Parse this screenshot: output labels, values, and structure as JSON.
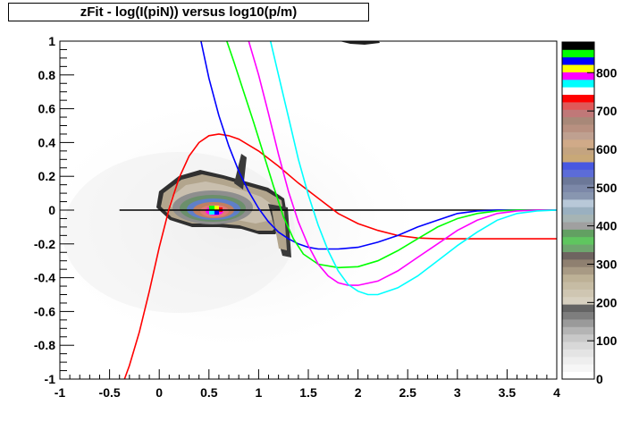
{
  "chart_data": {
    "type": "line",
    "title": "zFit - log(I(piN)) versus log10(p/m)",
    "xlabel": "",
    "ylabel": "",
    "xlim": [
      -1,
      4
    ],
    "ylim": [
      -1,
      1
    ],
    "x_ticks": [
      "-1",
      "-0.5",
      "0",
      "0.5",
      "1",
      "1.5",
      "2",
      "2.5",
      "3",
      "3.5",
      "4"
    ],
    "y_ticks": [
      "-1",
      "-0.8",
      "-0.6",
      "-0.4",
      "-0.2",
      "0",
      "0.2",
      "0.4",
      "0.6",
      "0.8",
      "1"
    ],
    "colorbar_ticks": [
      "0",
      "100",
      "200",
      "300",
      "400",
      "500",
      "600",
      "700",
      "800"
    ],
    "grid": false,
    "legend": "none",
    "background": "2D histogram (density map) centred near x=0.55, y=0.0",
    "series": [
      {
        "color": "#000000",
        "x": [
          -0.4,
          4.0
        ],
        "y": [
          0.0,
          0.0
        ]
      },
      {
        "color": "#ff0000",
        "x": [
          -0.35,
          -0.3,
          -0.2,
          -0.1,
          0.0,
          0.1,
          0.2,
          0.3,
          0.4,
          0.5,
          0.6,
          0.7,
          0.8,
          1.0,
          1.2,
          1.4,
          1.6,
          1.8,
          2.0,
          2.2,
          2.4,
          2.6,
          2.8,
          3.0,
          3.5,
          4.0
        ],
        "y": [
          -1.0,
          -0.92,
          -0.72,
          -0.48,
          -0.22,
          0.01,
          0.19,
          0.32,
          0.4,
          0.44,
          0.45,
          0.44,
          0.42,
          0.35,
          0.26,
          0.16,
          0.07,
          -0.02,
          -0.08,
          -0.12,
          -0.15,
          -0.165,
          -0.17,
          -0.17,
          -0.17,
          -0.17
        ]
      },
      {
        "color": "#0000ff",
        "x": [
          0.42,
          0.5,
          0.6,
          0.7,
          0.8,
          0.9,
          1.0,
          1.1,
          1.2,
          1.3,
          1.4,
          1.5,
          1.6,
          1.8,
          2.0,
          2.2,
          2.4,
          2.6,
          2.8,
          3.0,
          3.2,
          3.4,
          3.6,
          3.8,
          4.0
        ],
        "y": [
          1.0,
          0.78,
          0.56,
          0.38,
          0.23,
          0.11,
          0.01,
          -0.07,
          -0.13,
          -0.17,
          -0.2,
          -0.22,
          -0.23,
          -0.23,
          -0.22,
          -0.19,
          -0.15,
          -0.1,
          -0.06,
          -0.02,
          -0.005,
          0.0,
          0.0,
          0.0,
          0.0
        ]
      },
      {
        "color": "#00ff00",
        "x": [
          0.68,
          0.75,
          0.85,
          0.95,
          1.05,
          1.15,
          1.25,
          1.35,
          1.45,
          1.6,
          1.8,
          2.0,
          2.2,
          2.4,
          2.6,
          2.8,
          3.0,
          3.2,
          3.4,
          3.6,
          3.8,
          4.0
        ],
        "y": [
          1.0,
          0.88,
          0.7,
          0.52,
          0.33,
          0.14,
          -0.04,
          -0.17,
          -0.26,
          -0.32,
          -0.34,
          -0.335,
          -0.3,
          -0.24,
          -0.17,
          -0.1,
          -0.05,
          -0.02,
          -0.005,
          0.0,
          0.0,
          0.0
        ]
      },
      {
        "color": "#ff00ff",
        "x": [
          0.9,
          1.0,
          1.1,
          1.2,
          1.3,
          1.4,
          1.5,
          1.6,
          1.7,
          1.8,
          1.9,
          2.0,
          2.2,
          2.4,
          2.6,
          2.8,
          3.0,
          3.2,
          3.4,
          3.6,
          3.8,
          4.0
        ],
        "y": [
          1.0,
          0.8,
          0.57,
          0.33,
          0.11,
          -0.07,
          -0.21,
          -0.32,
          -0.39,
          -0.43,
          -0.445,
          -0.445,
          -0.42,
          -0.36,
          -0.28,
          -0.2,
          -0.12,
          -0.06,
          -0.02,
          -0.005,
          0.0,
          0.0
        ]
      },
      {
        "color": "#00ffff",
        "x": [
          1.12,
          1.2,
          1.3,
          1.4,
          1.5,
          1.6,
          1.7,
          1.8,
          1.9,
          2.0,
          2.1,
          2.2,
          2.4,
          2.6,
          2.8,
          3.0,
          3.2,
          3.4,
          3.6,
          3.8,
          4.0
        ],
        "y": [
          1.0,
          0.8,
          0.55,
          0.3,
          0.09,
          -0.09,
          -0.24,
          -0.36,
          -0.44,
          -0.48,
          -0.5,
          -0.5,
          -0.46,
          -0.39,
          -0.3,
          -0.21,
          -0.13,
          -0.06,
          -0.02,
          -0.005,
          0.0
        ]
      }
    ]
  }
}
